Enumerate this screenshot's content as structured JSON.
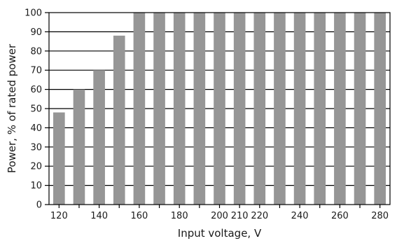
{
  "chart_data": {
    "type": "bar",
    "title": "",
    "xlabel": "Input voltage, V",
    "ylabel": "Power, % of rated power",
    "categories": [
      120,
      130,
      140,
      150,
      160,
      170,
      180,
      190,
      200,
      210,
      220,
      230,
      240,
      250,
      260,
      270,
      280
    ],
    "values": [
      48,
      60,
      70,
      88,
      100,
      100,
      100,
      100,
      100,
      100,
      100,
      100,
      100,
      100,
      100,
      100,
      100
    ],
    "x_tick_labels": [
      "120",
      "140",
      "160",
      "180",
      "200",
      "210",
      "220",
      "240",
      "260",
      "280"
    ],
    "x_tick_values": [
      120,
      140,
      160,
      180,
      200,
      210,
      220,
      240,
      260,
      280
    ],
    "y_ticks": [
      0,
      10,
      20,
      30,
      40,
      50,
      60,
      70,
      80,
      90,
      100
    ],
    "ylim": [
      0,
      100
    ],
    "grid": "horizontal",
    "bar_color": "#969696"
  }
}
